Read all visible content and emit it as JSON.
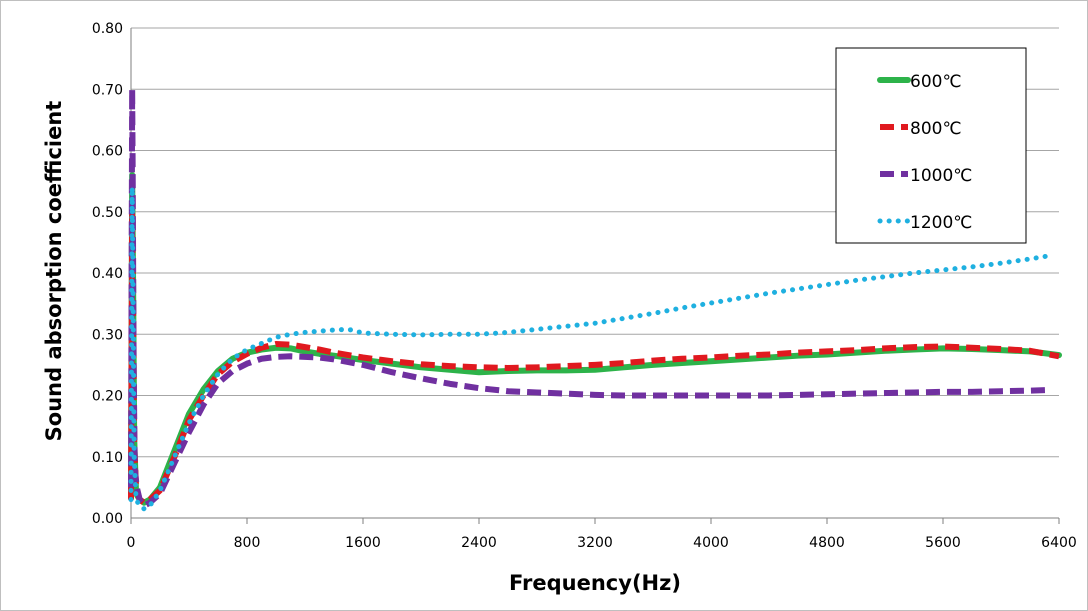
{
  "chart_data": {
    "type": "line",
    "title": "",
    "xlabel": "Frequency(Hz)",
    "ylabel": "Sound  absorption coefficient",
    "xlim": [
      0,
      6400
    ],
    "ylim": [
      0,
      0.8
    ],
    "x_ticks": [
      "0",
      "800",
      "1600",
      "2400",
      "3200",
      "4000",
      "4800",
      "5600",
      "6400"
    ],
    "y_ticks": [
      "0.00",
      "0.10",
      "0.20",
      "0.30",
      "0.40",
      "0.50",
      "0.60",
      "0.70",
      "0.80"
    ],
    "grid": "horizontal",
    "legend_position": "top-right",
    "series": [
      {
        "name": "600℃",
        "color": "#2db34a",
        "style": "solid",
        "points": [
          [
            0,
            0.04
          ],
          [
            8,
            0.56
          ],
          [
            14,
            0.4
          ],
          [
            22,
            0.13
          ],
          [
            35,
            0.04
          ],
          [
            60,
            0.03
          ],
          [
            90,
            0.025
          ],
          [
            130,
            0.03
          ],
          [
            200,
            0.05
          ],
          [
            300,
            0.11
          ],
          [
            400,
            0.17
          ],
          [
            500,
            0.21
          ],
          [
            600,
            0.24
          ],
          [
            700,
            0.26
          ],
          [
            800,
            0.27
          ],
          [
            900,
            0.275
          ],
          [
            1000,
            0.278
          ],
          [
            1100,
            0.277
          ],
          [
            1200,
            0.272
          ],
          [
            1300,
            0.268
          ],
          [
            1400,
            0.265
          ],
          [
            1600,
            0.258
          ],
          [
            1800,
            0.252
          ],
          [
            2000,
            0.246
          ],
          [
            2200,
            0.242
          ],
          [
            2400,
            0.238
          ],
          [
            2600,
            0.24
          ],
          [
            2800,
            0.241
          ],
          [
            3000,
            0.241
          ],
          [
            3200,
            0.242
          ],
          [
            3400,
            0.246
          ],
          [
            3600,
            0.25
          ],
          [
            3800,
            0.253
          ],
          [
            4000,
            0.256
          ],
          [
            4200,
            0.259
          ],
          [
            4400,
            0.262
          ],
          [
            4600,
            0.265
          ],
          [
            4800,
            0.267
          ],
          [
            5000,
            0.27
          ],
          [
            5200,
            0.273
          ],
          [
            5400,
            0.275
          ],
          [
            5600,
            0.277
          ],
          [
            5800,
            0.276
          ],
          [
            6000,
            0.274
          ],
          [
            6200,
            0.272
          ],
          [
            6400,
            0.266
          ]
        ]
      },
      {
        "name": "800℃",
        "color": "#e0191f",
        "style": "dashed",
        "points": [
          [
            0,
            0.03
          ],
          [
            8,
            0.5
          ],
          [
            14,
            0.35
          ],
          [
            22,
            0.12
          ],
          [
            35,
            0.05
          ],
          [
            60,
            0.03
          ],
          [
            90,
            0.025
          ],
          [
            130,
            0.03
          ],
          [
            200,
            0.045
          ],
          [
            300,
            0.1
          ],
          [
            400,
            0.16
          ],
          [
            500,
            0.2
          ],
          [
            600,
            0.235
          ],
          [
            700,
            0.255
          ],
          [
            800,
            0.268
          ],
          [
            900,
            0.278
          ],
          [
            1000,
            0.284
          ],
          [
            1100,
            0.283
          ],
          [
            1200,
            0.279
          ],
          [
            1300,
            0.275
          ],
          [
            1400,
            0.27
          ],
          [
            1600,
            0.262
          ],
          [
            1800,
            0.256
          ],
          [
            2000,
            0.251
          ],
          [
            2200,
            0.248
          ],
          [
            2400,
            0.246
          ],
          [
            2600,
            0.245
          ],
          [
            2800,
            0.246
          ],
          [
            3000,
            0.248
          ],
          [
            3200,
            0.25
          ],
          [
            3400,
            0.253
          ],
          [
            3600,
            0.257
          ],
          [
            3800,
            0.26
          ],
          [
            4000,
            0.262
          ],
          [
            4200,
            0.265
          ],
          [
            4400,
            0.267
          ],
          [
            4600,
            0.27
          ],
          [
            4800,
            0.272
          ],
          [
            5000,
            0.274
          ],
          [
            5200,
            0.277
          ],
          [
            5400,
            0.279
          ],
          [
            5600,
            0.28
          ],
          [
            5800,
            0.278
          ],
          [
            6000,
            0.276
          ],
          [
            6200,
            0.273
          ],
          [
            6400,
            0.264
          ]
        ]
      },
      {
        "name": "1000℃",
        "color": "#7030a0",
        "style": "dashed",
        "points": [
          [
            0,
            0.05
          ],
          [
            8,
            0.7
          ],
          [
            12,
            0.55
          ],
          [
            18,
            0.25
          ],
          [
            26,
            0.08
          ],
          [
            40,
            0.05
          ],
          [
            60,
            0.03
          ],
          [
            90,
            0.02
          ],
          [
            130,
            0.025
          ],
          [
            200,
            0.04
          ],
          [
            300,
            0.09
          ],
          [
            400,
            0.14
          ],
          [
            500,
            0.185
          ],
          [
            600,
            0.22
          ],
          [
            700,
            0.24
          ],
          [
            800,
            0.252
          ],
          [
            900,
            0.26
          ],
          [
            1000,
            0.263
          ],
          [
            1100,
            0.264
          ],
          [
            1200,
            0.263
          ],
          [
            1300,
            0.262
          ],
          [
            1400,
            0.259
          ],
          [
            1600,
            0.25
          ],
          [
            1800,
            0.238
          ],
          [
            2000,
            0.228
          ],
          [
            2200,
            0.219
          ],
          [
            2400,
            0.212
          ],
          [
            2600,
            0.207
          ],
          [
            2800,
            0.205
          ],
          [
            3000,
            0.203
          ],
          [
            3200,
            0.201
          ],
          [
            3400,
            0.2
          ],
          [
            3600,
            0.2
          ],
          [
            3800,
            0.2
          ],
          [
            4000,
            0.2
          ],
          [
            4200,
            0.2
          ],
          [
            4400,
            0.2
          ],
          [
            4600,
            0.201
          ],
          [
            4800,
            0.202
          ],
          [
            5000,
            0.203
          ],
          [
            5200,
            0.204
          ],
          [
            5400,
            0.205
          ],
          [
            5600,
            0.206
          ],
          [
            5800,
            0.206
          ],
          [
            6000,
            0.207
          ],
          [
            6200,
            0.208
          ],
          [
            6330,
            0.209
          ]
        ]
      },
      {
        "name": "1200℃",
        "color": "#1fb0e0",
        "style": "dotted",
        "points": [
          [
            0,
            0.03
          ],
          [
            8,
            0.54
          ],
          [
            14,
            0.38
          ],
          [
            22,
            0.1
          ],
          [
            35,
            0.03
          ],
          [
            60,
            0.02
          ],
          [
            90,
            0.015
          ],
          [
            130,
            0.02
          ],
          [
            200,
            0.045
          ],
          [
            300,
            0.1
          ],
          [
            400,
            0.155
          ],
          [
            500,
            0.2
          ],
          [
            600,
            0.235
          ],
          [
            700,
            0.26
          ],
          [
            800,
            0.275
          ],
          [
            900,
            0.285
          ],
          [
            1000,
            0.295
          ],
          [
            1100,
            0.3
          ],
          [
            1200,
            0.303
          ],
          [
            1300,
            0.305
          ],
          [
            1400,
            0.307
          ],
          [
            1500,
            0.308
          ],
          [
            1600,
            0.302
          ],
          [
            1800,
            0.3
          ],
          [
            2000,
            0.299
          ],
          [
            2200,
            0.3
          ],
          [
            2400,
            0.3
          ],
          [
            2600,
            0.303
          ],
          [
            2800,
            0.308
          ],
          [
            3000,
            0.313
          ],
          [
            3200,
            0.318
          ],
          [
            3400,
            0.326
          ],
          [
            3600,
            0.334
          ],
          [
            3800,
            0.343
          ],
          [
            4000,
            0.351
          ],
          [
            4200,
            0.359
          ],
          [
            4400,
            0.367
          ],
          [
            4600,
            0.374
          ],
          [
            4800,
            0.381
          ],
          [
            5000,
            0.388
          ],
          [
            5200,
            0.394
          ],
          [
            5400,
            0.4
          ],
          [
            5600,
            0.405
          ],
          [
            5800,
            0.41
          ],
          [
            6000,
            0.416
          ],
          [
            6200,
            0.423
          ],
          [
            6330,
            0.428
          ]
        ]
      }
    ]
  }
}
